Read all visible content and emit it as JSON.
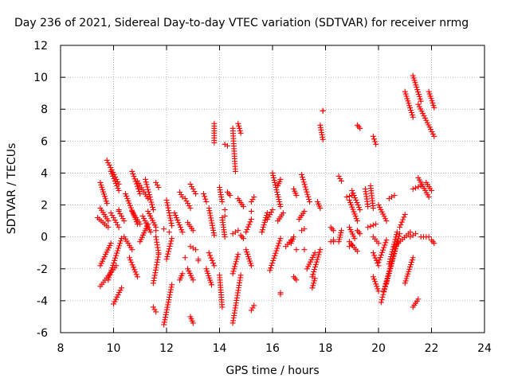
{
  "chart_data": {
    "type": "scatter",
    "title": "Day 236 of 2021, Sidereal Day-to-day VTEC variation (SDTVAR) for receiver nrmg",
    "xlabel": "GPS time / hours",
    "ylabel": "SDTVAR / TECUs",
    "xlim": [
      8,
      24
    ],
    "ylim": [
      -6,
      12
    ],
    "xticks": [
      8,
      10,
      12,
      14,
      16,
      18,
      20,
      22,
      24
    ],
    "yticks": [
      -6,
      -4,
      -2,
      0,
      2,
      4,
      6,
      8,
      10,
      12
    ],
    "grid": true,
    "marker": "+",
    "color": "#ff0000",
    "segments": [
      {
        "x0": 9.5,
        "y0": 3.4,
        "x1": 9.75,
        "y1": 2.1
      },
      {
        "x0": 9.4,
        "y0": 1.2,
        "x1": 9.8,
        "y1": 0.6
      },
      {
        "x0": 9.5,
        "y0": 1.8,
        "x1": 9.8,
        "y1": 1.0
      },
      {
        "x0": 9.5,
        "y0": -1.8,
        "x1": 9.9,
        "y1": -0.4
      },
      {
        "x0": 9.5,
        "y0": -3.1,
        "x1": 10.1,
        "y1": -1.8
      },
      {
        "x0": 9.8,
        "y0": -2.7,
        "x1": 10.3,
        "y1": -0.1
      },
      {
        "x0": 10.0,
        "y0": -4.2,
        "x1": 10.3,
        "y1": -3.2
      },
      {
        "x0": 9.75,
        "y0": 4.8,
        "x1": 10.2,
        "y1": 3.3
      },
      {
        "x0": 9.9,
        "y0": 4.1,
        "x1": 10.2,
        "y1": 2.9
      },
      {
        "x0": 9.9,
        "y0": 1.5,
        "x1": 10.2,
        "y1": 0.6
      },
      {
        "x0": 10.2,
        "y0": 1.6,
        "x1": 10.4,
        "y1": 1.0
      },
      {
        "x0": 10.4,
        "y0": 0.0,
        "x1": 10.7,
        "y1": -0.8
      },
      {
        "x0": 10.45,
        "y0": 2.7,
        "x1": 10.9,
        "y1": 0.8
      },
      {
        "x0": 10.7,
        "y0": 4.1,
        "x1": 11.0,
        "y1": 2.7
      },
      {
        "x0": 10.6,
        "y0": -1.3,
        "x1": 10.9,
        "y1": -2.5
      },
      {
        "x0": 10.7,
        "y0": 1.6,
        "x1": 11.0,
        "y1": 0.8
      },
      {
        "x0": 10.9,
        "y0": 3.5,
        "x1": 11.3,
        "y1": 2.4
      },
      {
        "x0": 11.1,
        "y0": 1.3,
        "x1": 11.4,
        "y1": 0.3
      },
      {
        "x0": 11.0,
        "y0": -0.3,
        "x1": 11.3,
        "y1": 0.8
      },
      {
        "x0": 11.2,
        "y0": 3.6,
        "x1": 11.5,
        "y1": 1.7
      },
      {
        "x0": 11.3,
        "y0": 1.6,
        "x1": 11.6,
        "y1": 0.6
      },
      {
        "x0": 11.6,
        "y0": 3.4,
        "x1": 11.7,
        "y1": 3.1
      },
      {
        "x0": 11.5,
        "y0": -2.9,
        "x1": 11.7,
        "y1": -1.1
      },
      {
        "x0": 11.6,
        "y0": 0.0,
        "x1": 11.7,
        "y1": -1.0
      },
      {
        "x0": 11.5,
        "y0": -4.4,
        "x1": 11.6,
        "y1": -4.7
      },
      {
        "x0": 11.9,
        "y0": -5.5,
        "x1": 12.2,
        "y1": -3.0
      },
      {
        "x0": 12.0,
        "y0": 2.3,
        "x1": 12.2,
        "y1": 0.7
      },
      {
        "x0": 12.0,
        "y0": -1.4,
        "x1": 12.2,
        "y1": -0.1
      },
      {
        "x0": 12.3,
        "y0": 1.5,
        "x1": 12.6,
        "y1": 0.3
      },
      {
        "x0": 12.5,
        "y0": 2.8,
        "x1": 12.6,
        "y1": 2.5
      },
      {
        "x0": 12.5,
        "y0": -2.7,
        "x1": 12.6,
        "y1": -2.3
      },
      {
        "x0": 12.7,
        "y0": 2.4,
        "x1": 12.9,
        "y1": 1.8
      },
      {
        "x0": 12.8,
        "y0": 0.9,
        "x1": 13.0,
        "y1": 0.4
      },
      {
        "x0": 12.9,
        "y0": 3.3,
        "x1": 13.1,
        "y1": 2.7
      },
      {
        "x0": 12.8,
        "y0": -2.0,
        "x1": 13.0,
        "y1": -2.7
      },
      {
        "x0": 12.9,
        "y0": -5.0,
        "x1": 13.0,
        "y1": -5.4
      },
      {
        "x0": 12.9,
        "y0": -0.6,
        "x1": 13.1,
        "y1": -0.8
      },
      {
        "x0": 13.4,
        "y0": 2.7,
        "x1": 13.5,
        "y1": 2.2
      },
      {
        "x0": 13.5,
        "y0": -2.0,
        "x1": 13.7,
        "y1": -3.0
      },
      {
        "x0": 13.6,
        "y0": 1.8,
        "x1": 13.8,
        "y1": 0.1
      },
      {
        "x0": 13.8,
        "y0": 7.1,
        "x1": 13.8,
        "y1": 5.9
      },
      {
        "x0": 13.6,
        "y0": -1.0,
        "x1": 13.8,
        "y1": -1.8
      },
      {
        "x0": 14.0,
        "y0": 3.1,
        "x1": 14.1,
        "y1": 2.2
      },
      {
        "x0": 14.0,
        "y0": -2.4,
        "x1": 14.1,
        "y1": -4.4
      },
      {
        "x0": 14.1,
        "y0": 1.2,
        "x1": 14.2,
        "y1": 0.0
      },
      {
        "x0": 14.2,
        "y0": 5.8,
        "x1": 14.3,
        "y1": 5.7
      },
      {
        "x0": 14.3,
        "y0": 2.8,
        "x1": 14.4,
        "y1": 2.6
      },
      {
        "x0": 14.5,
        "y0": 6.8,
        "x1": 14.6,
        "y1": 4.1
      },
      {
        "x0": 14.5,
        "y0": -2.3,
        "x1": 14.7,
        "y1": -1.1
      },
      {
        "x0": 14.5,
        "y0": -5.4,
        "x1": 14.8,
        "y1": -2.4
      },
      {
        "x0": 14.5,
        "y0": 0.2,
        "x1": 14.7,
        "y1": 0.4
      },
      {
        "x0": 14.7,
        "y0": 7.1,
        "x1": 14.8,
        "y1": 6.5
      },
      {
        "x0": 14.7,
        "y0": 2.4,
        "x1": 14.9,
        "y1": 1.9
      },
      {
        "x0": 14.8,
        "y0": 0.1,
        "x1": 14.9,
        "y1": -0.1
      },
      {
        "x0": 15.0,
        "y0": -0.8,
        "x1": 15.2,
        "y1": -1.8
      },
      {
        "x0": 15.0,
        "y0": 0.3,
        "x1": 15.2,
        "y1": 1.1
      },
      {
        "x0": 15.2,
        "y0": 2.2,
        "x1": 15.3,
        "y1": 2.5
      },
      {
        "x0": 15.2,
        "y0": -4.6,
        "x1": 15.3,
        "y1": -4.3
      },
      {
        "x0": 15.6,
        "y0": 0.3,
        "x1": 15.8,
        "y1": 1.5
      },
      {
        "x0": 15.8,
        "y0": 1.1,
        "x1": 16.0,
        "y1": 1.7
      },
      {
        "x0": 15.9,
        "y0": -2.1,
        "x1": 16.3,
        "y1": -0.1
      },
      {
        "x0": 16.0,
        "y0": 4.0,
        "x1": 16.3,
        "y1": 1.9
      },
      {
        "x0": 16.2,
        "y0": 3.2,
        "x1": 16.3,
        "y1": 3.6
      },
      {
        "x0": 16.2,
        "y0": 1.0,
        "x1": 16.4,
        "y1": 1.5
      },
      {
        "x0": 16.3,
        "y0": -3.5,
        "x1": 16.3,
        "y1": -3.6
      },
      {
        "x0": 16.5,
        "y0": -0.6,
        "x1": 16.7,
        "y1": -0.2
      },
      {
        "x0": 16.7,
        "y0": -0.4,
        "x1": 16.8,
        "y1": 0.0
      },
      {
        "x0": 16.8,
        "y0": 3.0,
        "x1": 16.9,
        "y1": 2.6
      },
      {
        "x0": 16.8,
        "y0": -2.5,
        "x1": 16.9,
        "y1": -2.7
      },
      {
        "x0": 17.0,
        "y0": 1.1,
        "x1": 17.2,
        "y1": 1.6
      },
      {
        "x0": 17.1,
        "y0": 3.9,
        "x1": 17.4,
        "y1": 2.2
      },
      {
        "x0": 17.1,
        "y0": 0.4,
        "x1": 17.2,
        "y1": 0.5
      },
      {
        "x0": 17.3,
        "y0": -2.0,
        "x1": 17.6,
        "y1": -1.0
      },
      {
        "x0": 17.5,
        "y0": -2.5,
        "x1": 17.8,
        "y1": -0.8
      },
      {
        "x0": 17.5,
        "y0": -3.2,
        "x1": 17.6,
        "y1": -2.6
      },
      {
        "x0": 17.7,
        "y0": 2.2,
        "x1": 17.8,
        "y1": 1.8
      },
      {
        "x0": 17.8,
        "y0": 7.0,
        "x1": 17.9,
        "y1": 6.1
      },
      {
        "x0": 17.9,
        "y0": 7.9,
        "x1": 17.9,
        "y1": 7.9
      },
      {
        "x0": 18.2,
        "y0": 0.6,
        "x1": 18.3,
        "y1": 0.4
      },
      {
        "x0": 18.3,
        "y0": -0.2,
        "x1": 18.3,
        "y1": -0.3
      },
      {
        "x0": 18.5,
        "y0": 3.8,
        "x1": 18.6,
        "y1": 3.5
      },
      {
        "x0": 18.5,
        "y0": -0.3,
        "x1": 18.6,
        "y1": 0.4
      },
      {
        "x0": 18.8,
        "y0": 2.5,
        "x1": 19.0,
        "y1": 2.6
      },
      {
        "x0": 18.9,
        "y0": 0.6,
        "x1": 19.1,
        "y1": -0.1
      },
      {
        "x0": 18.9,
        "y0": 2.3,
        "x1": 19.2,
        "y1": 1.0
      },
      {
        "x0": 18.9,
        "y0": -0.3,
        "x1": 19.2,
        "y1": -0.9
      },
      {
        "x0": 19.0,
        "y0": 2.9,
        "x1": 19.3,
        "y1": 1.7
      },
      {
        "x0": 19.2,
        "y0": 0.4,
        "x1": 19.3,
        "y1": 0.2
      },
      {
        "x0": 19.2,
        "y0": 7.0,
        "x1": 19.3,
        "y1": 6.8
      },
      {
        "x0": 19.5,
        "y0": 3.0,
        "x1": 19.6,
        "y1": 1.9
      },
      {
        "x0": 19.6,
        "y0": 0.6,
        "x1": 19.9,
        "y1": 0.8
      },
      {
        "x0": 19.7,
        "y0": 3.2,
        "x1": 19.8,
        "y1": 1.8
      },
      {
        "x0": 19.8,
        "y0": 6.3,
        "x1": 19.9,
        "y1": 5.8
      },
      {
        "x0": 19.8,
        "y0": 0.0,
        "x1": 20.0,
        "y1": -0.4
      },
      {
        "x0": 19.8,
        "y0": -2.5,
        "x1": 20.0,
        "y1": -3.4
      },
      {
        "x0": 19.8,
        "y0": -1.0,
        "x1": 20.0,
        "y1": -1.8
      },
      {
        "x0": 20.0,
        "y0": 2.0,
        "x1": 20.3,
        "y1": 1.0
      },
      {
        "x0": 20.0,
        "y0": -1.6,
        "x1": 20.3,
        "y1": -0.2
      },
      {
        "x0": 20.1,
        "y0": -4.1,
        "x1": 20.3,
        "y1": -2.8
      },
      {
        "x0": 20.2,
        "y0": -3.4,
        "x1": 20.7,
        "y1": -0.3
      },
      {
        "x0": 20.3,
        "y0": -2.9,
        "x1": 20.8,
        "y1": 0.2
      },
      {
        "x0": 20.4,
        "y0": -1.7,
        "x1": 20.7,
        "y1": 0.3
      },
      {
        "x0": 20.4,
        "y0": 2.4,
        "x1": 20.6,
        "y1": 2.6
      },
      {
        "x0": 20.6,
        "y0": -0.6,
        "x1": 21.2,
        "y1": 0.3
      },
      {
        "x0": 20.8,
        "y0": 0.6,
        "x1": 21.0,
        "y1": 1.4
      },
      {
        "x0": 21.0,
        "y0": 9.1,
        "x1": 21.3,
        "y1": 7.5
      },
      {
        "x0": 21.0,
        "y0": -2.9,
        "x1": 21.3,
        "y1": -1.3
      },
      {
        "x0": 21.2,
        "y0": 0.0,
        "x1": 21.4,
        "y1": 0.2
      },
      {
        "x0": 21.3,
        "y0": 10.1,
        "x1": 21.6,
        "y1": 8.5
      },
      {
        "x0": 21.3,
        "y0": -4.4,
        "x1": 21.5,
        "y1": -3.9
      },
      {
        "x0": 21.3,
        "y0": 3.0,
        "x1": 21.6,
        "y1": 3.2
      },
      {
        "x0": 21.5,
        "y0": 3.7,
        "x1": 21.9,
        "y1": 2.5
      },
      {
        "x0": 21.5,
        "y0": 8.3,
        "x1": 22.1,
        "y1": 6.3
      },
      {
        "x0": 21.6,
        "y0": 0.0,
        "x1": 21.9,
        "y1": 0.0
      },
      {
        "x0": 21.9,
        "y0": 9.1,
        "x1": 22.1,
        "y1": 8.1
      },
      {
        "x0": 22.0,
        "y0": -0.2,
        "x1": 22.1,
        "y1": -0.4
      },
      {
        "x0": 21.8,
        "y0": 3.4,
        "x1": 22.0,
        "y1": 2.9
      }
    ],
    "points": [
      {
        "x": 10.2,
        "y": 1.7
      },
      {
        "x": 11.9,
        "y": 0.5
      },
      {
        "x": 12.1,
        "y": 0.3
      },
      {
        "x": 12.7,
        "y": -1.3
      },
      {
        "x": 13.2,
        "y": -1.4
      },
      {
        "x": 13.2,
        "y": -1.5
      },
      {
        "x": 14.2,
        "y": 1.7
      },
      {
        "x": 14.2,
        "y": 1.3
      },
      {
        "x": 15.2,
        "y": 1.6
      },
      {
        "x": 16.9,
        "y": -0.8
      },
      {
        "x": 17.2,
        "y": -0.8
      },
      {
        "x": 18.2,
        "y": -0.3
      },
      {
        "x": 18.9,
        "y": -0.6
      },
      {
        "x": 19.0,
        "y": -0.5
      },
      {
        "x": 11.6,
        "y": 0.4
      }
    ]
  }
}
